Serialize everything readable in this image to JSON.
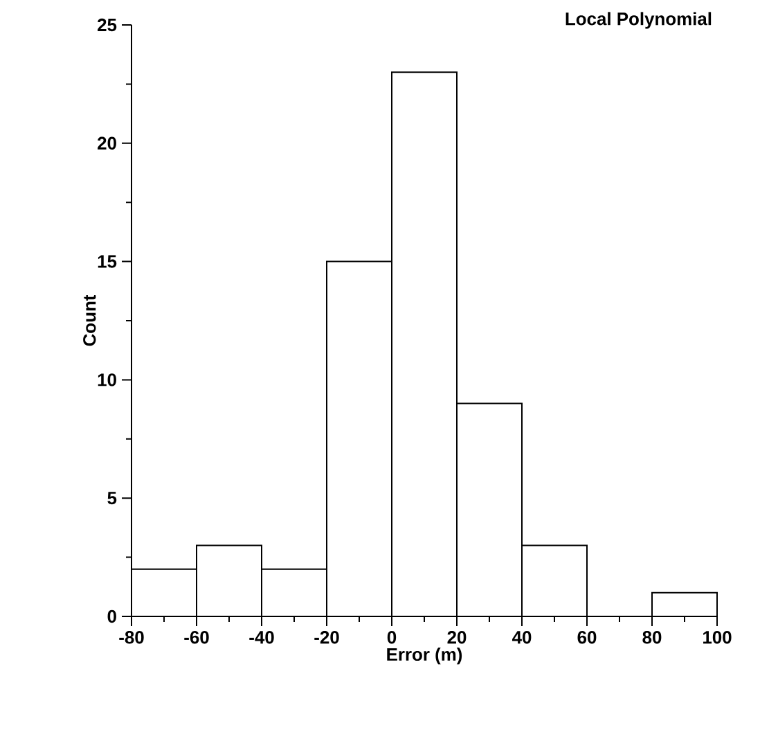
{
  "chart_data": {
    "type": "histogram",
    "title": "Local Polynomial",
    "xlabel": "Error (m)",
    "ylabel": "Count",
    "bins": [
      -80,
      -60,
      -40,
      -20,
      0,
      20,
      40,
      60,
      80,
      100
    ],
    "values": [
      2,
      3,
      2,
      15,
      23,
      9,
      3,
      0,
      1
    ],
    "color": "#ffffff",
    "xlim": [
      -80,
      100
    ],
    "ylim": [
      0,
      25
    ],
    "xticks": [
      -80,
      -60,
      -40,
      -20,
      0,
      20,
      40,
      60,
      80,
      100
    ],
    "yticks": [
      0,
      5,
      10,
      15,
      20,
      25
    ]
  }
}
